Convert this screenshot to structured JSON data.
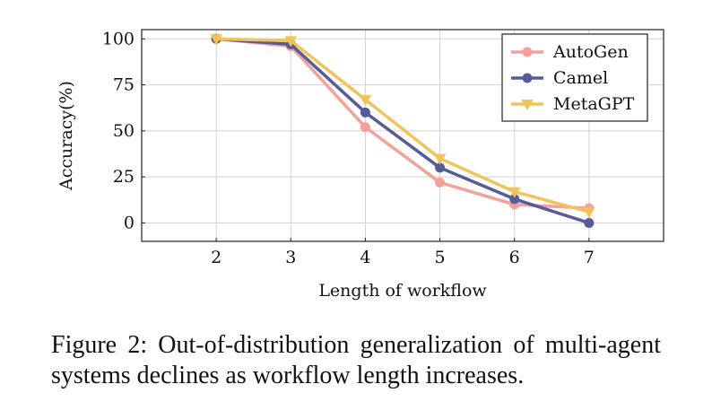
{
  "chart_data": {
    "type": "line",
    "x": [
      2,
      3,
      4,
      5,
      6,
      7
    ],
    "xticks": [
      "2",
      "3",
      "4",
      "5",
      "6",
      "7"
    ],
    "yticks": [
      "0",
      "25",
      "50",
      "75",
      "100"
    ],
    "xlim": [
      1,
      8
    ],
    "ylim": [
      -10,
      105
    ],
    "xlabel": "Length of workflow",
    "ylabel": "Accuracy(%)",
    "grid": true,
    "legend_position": "top-right",
    "series": [
      {
        "name": "AutoGen",
        "values": [
          100,
          96,
          52,
          22,
          10,
          8
        ],
        "color": "#f4a19c",
        "marker": "circle"
      },
      {
        "name": "Camel",
        "values": [
          100,
          97,
          60,
          30,
          13,
          0
        ],
        "color": "#575b96",
        "marker": "circle"
      },
      {
        "name": "MetaGPT",
        "values": [
          100,
          99,
          67,
          35,
          17,
          6
        ],
        "color": "#f0c35c",
        "marker": "triangle-down"
      }
    ]
  },
  "caption": "Figure 2: Out-of-distribution generalization of multi-agent systems declines as workflow length increases."
}
